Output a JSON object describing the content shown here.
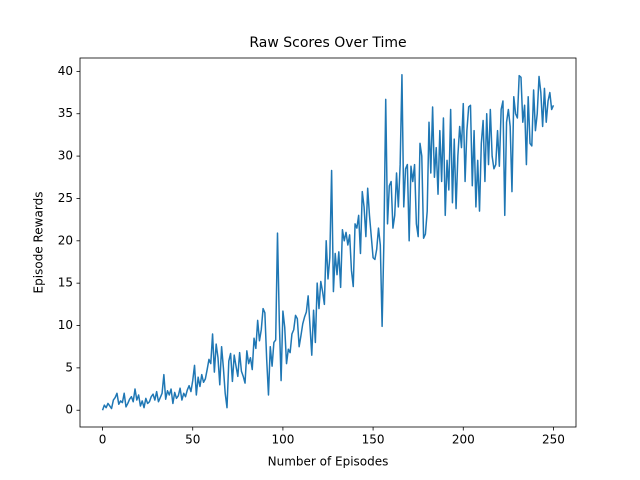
{
  "chart_data": {
    "type": "line",
    "title": "Raw Scores Over Time",
    "xlabel": "Number of Episodes",
    "ylabel": "Episode Rewards",
    "xlim": [
      -12.5,
      262.5
    ],
    "ylim": [
      -1.98,
      41.58
    ],
    "xticks": [
      0,
      50,
      100,
      150,
      200,
      250
    ],
    "yticks": [
      0,
      5,
      10,
      15,
      20,
      25,
      30,
      35,
      40
    ],
    "grid": false,
    "x": [
      0,
      1,
      2,
      3,
      4,
      5,
      6,
      7,
      8,
      9,
      10,
      11,
      12,
      13,
      14,
      15,
      16,
      17,
      18,
      19,
      20,
      21,
      22,
      23,
      24,
      25,
      26,
      27,
      28,
      29,
      30,
      31,
      32,
      33,
      34,
      35,
      36,
      37,
      38,
      39,
      40,
      41,
      42,
      43,
      44,
      45,
      46,
      47,
      48,
      49,
      50,
      51,
      52,
      53,
      54,
      55,
      56,
      57,
      58,
      59,
      60,
      61,
      62,
      63,
      64,
      65,
      66,
      67,
      68,
      69,
      70,
      71,
      72,
      73,
      74,
      75,
      76,
      77,
      78,
      79,
      80,
      81,
      82,
      83,
      84,
      85,
      86,
      87,
      88,
      89,
      90,
      91,
      92,
      93,
      94,
      95,
      96,
      97,
      98,
      99,
      100,
      101,
      102,
      103,
      104,
      105,
      106,
      107,
      108,
      109,
      110,
      111,
      112,
      113,
      114,
      115,
      116,
      117,
      118,
      119,
      120,
      121,
      122,
      123,
      124,
      125,
      126,
      127,
      128,
      129,
      130,
      131,
      132,
      133,
      134,
      135,
      136,
      137,
      138,
      139,
      140,
      141,
      142,
      143,
      144,
      145,
      146,
      147,
      148,
      149,
      150,
      151,
      152,
      153,
      154,
      155,
      156,
      157,
      158,
      159,
      160,
      161,
      162,
      163,
      164,
      165,
      166,
      167,
      168,
      169,
      170,
      171,
      172,
      173,
      174,
      175,
      176,
      177,
      178,
      179,
      180,
      181,
      182,
      183,
      184,
      185,
      186,
      187,
      188,
      189,
      190,
      191,
      192,
      193,
      194,
      195,
      196,
      197,
      198,
      199,
      200,
      201,
      202,
      203,
      204,
      205,
      206,
      207,
      208,
      209,
      210,
      211,
      212,
      213,
      214,
      215,
      216,
      217,
      218,
      219,
      220,
      221,
      222,
      223,
      224,
      225,
      226,
      227,
      228,
      229,
      230,
      231,
      232,
      233,
      234,
      235,
      236,
      237,
      238,
      239,
      240,
      241,
      242,
      243,
      244,
      245,
      246,
      247,
      248,
      249,
      250
    ],
    "series": [
      {
        "color": "#1f77b4",
        "values": [
          0,
          0.6,
          0.3,
          0.8,
          0.5,
          0.2,
          1.2,
          1.5,
          2.0,
          0.7,
          1.1,
          0.9,
          2.0,
          0.4,
          0.8,
          1.3,
          1.6,
          1.0,
          2.5,
          1.2,
          1.8,
          0.5,
          1.1,
          0.3,
          1.4,
          0.8,
          1.0,
          1.6,
          1.9,
          1.2,
          2.2,
          1.0,
          1.5,
          2.0,
          4.2,
          1.3,
          2.3,
          1.8,
          2.5,
          0.8,
          2.1,
          1.4,
          1.7,
          2.6,
          1.2,
          2.0,
          1.6,
          2.4,
          2.9,
          2.2,
          3.5,
          5.3,
          1.8,
          3.9,
          2.8,
          4.2,
          3.3,
          3.7,
          4.8,
          6.0,
          5.5,
          9.0,
          4.5,
          7.8,
          6.2,
          3.0,
          7.5,
          5.0,
          2.0,
          0.3,
          5.8,
          6.7,
          3.4,
          6.5,
          5.2,
          4.0,
          6.8,
          4.6,
          4.0,
          3.2,
          7.0,
          5.5,
          6.2,
          4.8,
          8.5,
          7.3,
          10.6,
          8.2,
          9.5,
          12.0,
          11.5,
          6.0,
          1.8,
          7.5,
          5.2,
          8.0,
          8.3,
          20.9,
          10.5,
          3.5,
          11.7,
          9.8,
          5.5,
          7.2,
          6.8,
          9.0,
          9.5,
          11.2,
          10.8,
          7.5,
          8.8,
          10.2,
          11.0,
          11.6,
          13.5,
          10.0,
          6.5,
          11.8,
          8.0,
          15.0,
          12.0,
          15.2,
          14.0,
          12.5,
          20.0,
          15.5,
          18.0,
          28.3,
          14.0,
          18.5,
          16.0,
          18.7,
          14.5,
          21.3,
          20.0,
          21.0,
          19.5,
          20.7,
          16.5,
          14.6,
          22.0,
          21.5,
          23.0,
          18.5,
          25.8,
          24.0,
          20.5,
          26.2,
          23.0,
          20.5,
          18.0,
          17.8,
          19.0,
          21.5,
          19.5,
          9.9,
          20.0,
          36.7,
          22.0,
          26.5,
          27.0,
          21.5,
          23.0,
          28.0,
          24.0,
          29.0,
          39.6,
          24.0,
          28.5,
          29.0,
          20.0,
          28.8,
          27.0,
          29.0,
          22.0,
          20.5,
          31.5,
          30.0,
          20.3,
          20.8,
          23.5,
          34.0,
          28.0,
          35.8,
          27.5,
          31.0,
          25.5,
          33.0,
          27.0,
          34.5,
          23.0,
          29.5,
          26.0,
          35.5,
          24.5,
          32.0,
          23.8,
          30.0,
          33.5,
          31.0,
          36.2,
          27.0,
          33.0,
          35.8,
          36.0,
          26.5,
          33.0,
          24.0,
          29.5,
          23.5,
          31.5,
          34.2,
          27.0,
          35.0,
          29.0,
          35.5,
          30.0,
          28.5,
          29.0,
          33.0,
          28.8,
          35.5,
          36.5,
          23.0,
          34.0,
          35.5,
          33.5,
          25.8,
          37.0,
          35.0,
          34.5,
          39.5,
          39.3,
          34.0,
          36.0,
          29.0,
          37.0,
          31.5,
          31.2,
          37.8,
          33.0,
          35.0,
          39.4,
          37.5,
          33.5,
          38.0,
          34.0,
          36.5,
          37.5,
          35.5,
          36.0
        ]
      }
    ]
  }
}
